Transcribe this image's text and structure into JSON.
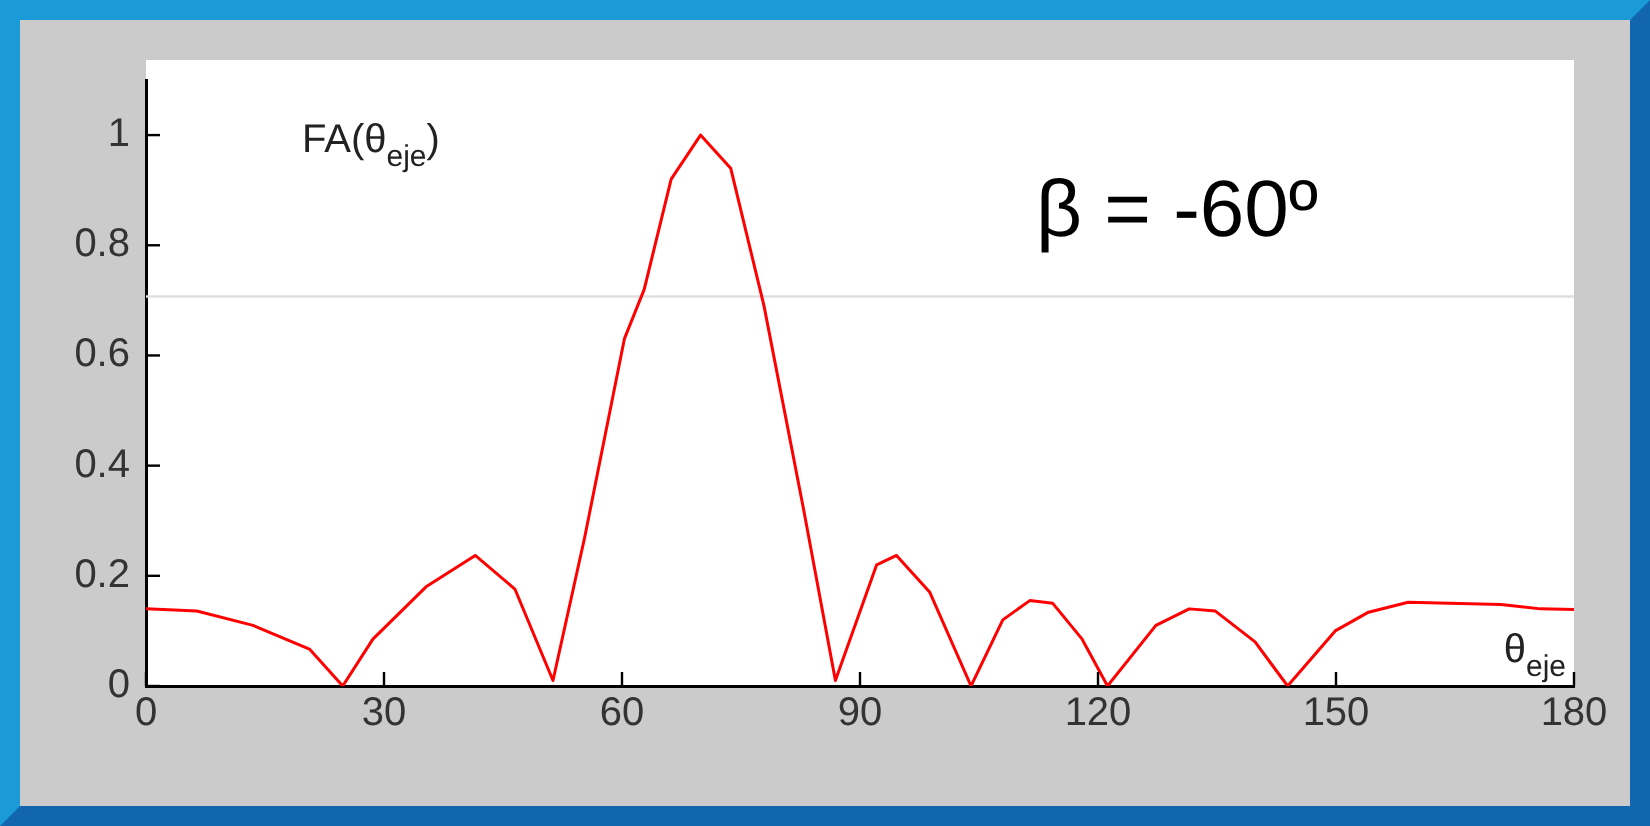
{
  "chart_data": {
    "type": "line",
    "ylabel": "FA(θ$_{eje}$)",
    "xlabel": "θ$_{eje}$",
    "annotations": [
      "β = -60º"
    ],
    "x": [
      0,
      6.4,
      13.5,
      20.6,
      24.8,
      28.6,
      35.3,
      41.5,
      46.5,
      51.3,
      55.3,
      60.3,
      62.8,
      66.2,
      69.9,
      73.7,
      77.9,
      82.9,
      86.9,
      92.1,
      94.6,
      98.8,
      104,
      108,
      111.4,
      114.3,
      118,
      121.2,
      127.3,
      131.5,
      134.8,
      139.8,
      143.9,
      149.9,
      154.1,
      159.1,
      170.8,
      175.8,
      180
    ],
    "series": [
      {
        "color": "#ff0000",
        "values": [
          0.14,
          0.136,
          0.11,
          0.067,
          0,
          0.085,
          0.18,
          0.237,
          0.176,
          0.01,
          0.27,
          0.63,
          0.72,
          0.92,
          1.0,
          0.94,
          0.69,
          0.32,
          0.01,
          0.22,
          0.237,
          0.17,
          0,
          0.12,
          0.155,
          0.15,
          0.085,
          0,
          0.11,
          0.14,
          0.136,
          0.08,
          0,
          0.1,
          0.134,
          0.152,
          0.148,
          0.14,
          0.139
        ]
      }
    ],
    "xlim": [
      0,
      180
    ],
    "xticks": [
      0,
      30,
      60,
      90,
      120,
      150,
      180
    ],
    "ylim": [
      0,
      1.1
    ],
    "yticks": [
      0,
      0.2,
      0.4,
      0.6,
      0.8,
      1
    ],
    "ref_lines": [
      {
        "axis": "y",
        "value": 0.707,
        "color": "#e0e0e0"
      }
    ],
    "grid": false,
    "legend": false,
    "marker": "none",
    "line_style": "solid"
  }
}
